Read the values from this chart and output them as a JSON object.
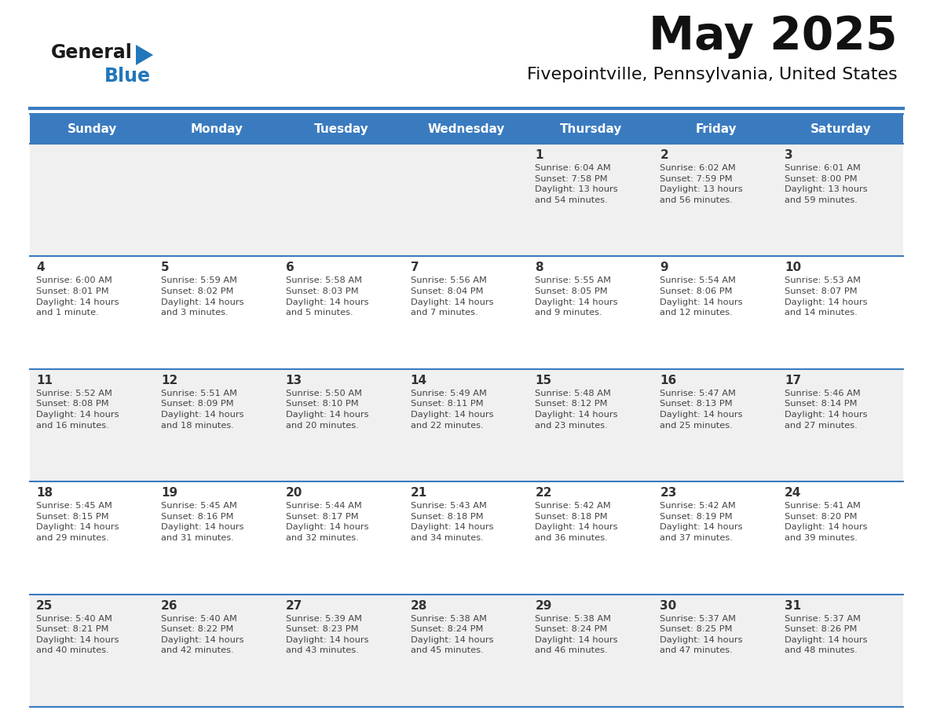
{
  "title": "May 2025",
  "subtitle": "Fivepointville, Pennsylvania, United States",
  "header_bg": "#3a7bbf",
  "header_text": "#ffffff",
  "day_names": [
    "Sunday",
    "Monday",
    "Tuesday",
    "Wednesday",
    "Thursday",
    "Friday",
    "Saturday"
  ],
  "odd_row_bg": "#f0f0f0",
  "even_row_bg": "#ffffff",
  "line_color": "#3a7bbf",
  "cell_text_color": "#444444",
  "day_num_color": "#333333",
  "logo_black": "#1a1a1a",
  "logo_blue": "#2277bb",
  "triangle_color": "#2277bb",
  "weeks": [
    [
      {
        "day": "",
        "info": ""
      },
      {
        "day": "",
        "info": ""
      },
      {
        "day": "",
        "info": ""
      },
      {
        "day": "",
        "info": ""
      },
      {
        "day": "1",
        "info": "Sunrise: 6:04 AM\nSunset: 7:58 PM\nDaylight: 13 hours\nand 54 minutes."
      },
      {
        "day": "2",
        "info": "Sunrise: 6:02 AM\nSunset: 7:59 PM\nDaylight: 13 hours\nand 56 minutes."
      },
      {
        "day": "3",
        "info": "Sunrise: 6:01 AM\nSunset: 8:00 PM\nDaylight: 13 hours\nand 59 minutes."
      }
    ],
    [
      {
        "day": "4",
        "info": "Sunrise: 6:00 AM\nSunset: 8:01 PM\nDaylight: 14 hours\nand 1 minute."
      },
      {
        "day": "5",
        "info": "Sunrise: 5:59 AM\nSunset: 8:02 PM\nDaylight: 14 hours\nand 3 minutes."
      },
      {
        "day": "6",
        "info": "Sunrise: 5:58 AM\nSunset: 8:03 PM\nDaylight: 14 hours\nand 5 minutes."
      },
      {
        "day": "7",
        "info": "Sunrise: 5:56 AM\nSunset: 8:04 PM\nDaylight: 14 hours\nand 7 minutes."
      },
      {
        "day": "8",
        "info": "Sunrise: 5:55 AM\nSunset: 8:05 PM\nDaylight: 14 hours\nand 9 minutes."
      },
      {
        "day": "9",
        "info": "Sunrise: 5:54 AM\nSunset: 8:06 PM\nDaylight: 14 hours\nand 12 minutes."
      },
      {
        "day": "10",
        "info": "Sunrise: 5:53 AM\nSunset: 8:07 PM\nDaylight: 14 hours\nand 14 minutes."
      }
    ],
    [
      {
        "day": "11",
        "info": "Sunrise: 5:52 AM\nSunset: 8:08 PM\nDaylight: 14 hours\nand 16 minutes."
      },
      {
        "day": "12",
        "info": "Sunrise: 5:51 AM\nSunset: 8:09 PM\nDaylight: 14 hours\nand 18 minutes."
      },
      {
        "day": "13",
        "info": "Sunrise: 5:50 AM\nSunset: 8:10 PM\nDaylight: 14 hours\nand 20 minutes."
      },
      {
        "day": "14",
        "info": "Sunrise: 5:49 AM\nSunset: 8:11 PM\nDaylight: 14 hours\nand 22 minutes."
      },
      {
        "day": "15",
        "info": "Sunrise: 5:48 AM\nSunset: 8:12 PM\nDaylight: 14 hours\nand 23 minutes."
      },
      {
        "day": "16",
        "info": "Sunrise: 5:47 AM\nSunset: 8:13 PM\nDaylight: 14 hours\nand 25 minutes."
      },
      {
        "day": "17",
        "info": "Sunrise: 5:46 AM\nSunset: 8:14 PM\nDaylight: 14 hours\nand 27 minutes."
      }
    ],
    [
      {
        "day": "18",
        "info": "Sunrise: 5:45 AM\nSunset: 8:15 PM\nDaylight: 14 hours\nand 29 minutes."
      },
      {
        "day": "19",
        "info": "Sunrise: 5:45 AM\nSunset: 8:16 PM\nDaylight: 14 hours\nand 31 minutes."
      },
      {
        "day": "20",
        "info": "Sunrise: 5:44 AM\nSunset: 8:17 PM\nDaylight: 14 hours\nand 32 minutes."
      },
      {
        "day": "21",
        "info": "Sunrise: 5:43 AM\nSunset: 8:18 PM\nDaylight: 14 hours\nand 34 minutes."
      },
      {
        "day": "22",
        "info": "Sunrise: 5:42 AM\nSunset: 8:18 PM\nDaylight: 14 hours\nand 36 minutes."
      },
      {
        "day": "23",
        "info": "Sunrise: 5:42 AM\nSunset: 8:19 PM\nDaylight: 14 hours\nand 37 minutes."
      },
      {
        "day": "24",
        "info": "Sunrise: 5:41 AM\nSunset: 8:20 PM\nDaylight: 14 hours\nand 39 minutes."
      }
    ],
    [
      {
        "day": "25",
        "info": "Sunrise: 5:40 AM\nSunset: 8:21 PM\nDaylight: 14 hours\nand 40 minutes."
      },
      {
        "day": "26",
        "info": "Sunrise: 5:40 AM\nSunset: 8:22 PM\nDaylight: 14 hours\nand 42 minutes."
      },
      {
        "day": "27",
        "info": "Sunrise: 5:39 AM\nSunset: 8:23 PM\nDaylight: 14 hours\nand 43 minutes."
      },
      {
        "day": "28",
        "info": "Sunrise: 5:38 AM\nSunset: 8:24 PM\nDaylight: 14 hours\nand 45 minutes."
      },
      {
        "day": "29",
        "info": "Sunrise: 5:38 AM\nSunset: 8:24 PM\nDaylight: 14 hours\nand 46 minutes."
      },
      {
        "day": "30",
        "info": "Sunrise: 5:37 AM\nSunset: 8:25 PM\nDaylight: 14 hours\nand 47 minutes."
      },
      {
        "day": "31",
        "info": "Sunrise: 5:37 AM\nSunset: 8:26 PM\nDaylight: 14 hours\nand 48 minutes."
      }
    ]
  ]
}
